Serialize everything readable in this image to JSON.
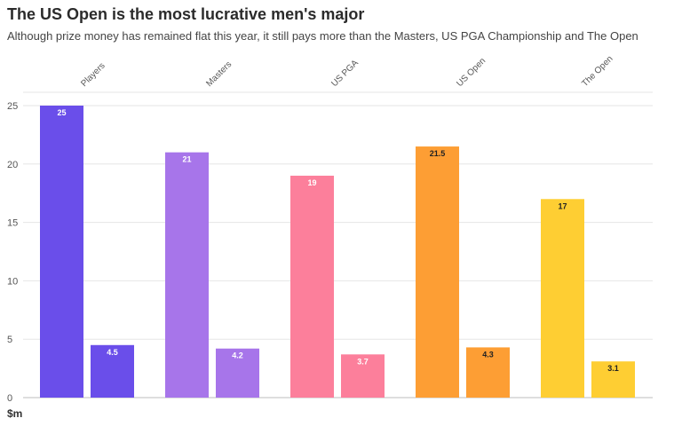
{
  "title": "The US Open is the most lucrative men's major",
  "subtitle": "Although prize money has remained flat this year, it still pays more than the Masters, US PGA Championship and The Open",
  "chart_data": {
    "type": "bar",
    "categories": [
      "Players",
      "Masters",
      "US PGA",
      "US Open",
      "The Open"
    ],
    "series": [
      {
        "values": [
          25,
          21,
          19,
          21.5,
          17
        ]
      },
      {
        "values": [
          4.5,
          4.2,
          3.7,
          4.3,
          3.1
        ]
      }
    ],
    "colors": [
      "#6a4eea",
      "#a775ea",
      "#fc7f9b",
      "#fd9e34",
      "#fece33"
    ],
    "label_colors": [
      "#ffffff",
      "#ffffff",
      "#ffffff",
      "#222222",
      "#222222"
    ],
    "ylabel": "$m",
    "yticks": [
      0,
      5,
      10,
      15,
      20,
      25
    ],
    "ylim": [
      0,
      25
    ],
    "grid": true
  }
}
